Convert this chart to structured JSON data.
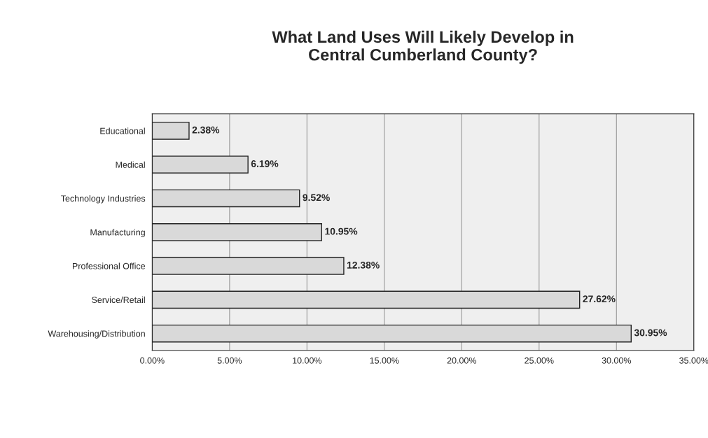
{
  "chart_data": {
    "type": "bar",
    "orientation": "horizontal",
    "title": "What Land Uses Will Likely Develop in\nCentral Cumberland County?",
    "categories": [
      "Educational",
      "Medical",
      "Technology Industries",
      "Manufacturing",
      "Professional Office",
      "Service/Retail",
      "Warehousing/Distribution"
    ],
    "values": [
      2.38,
      6.19,
      9.52,
      10.95,
      12.38,
      27.62,
      30.95
    ],
    "value_labels": [
      "2.38%",
      "6.19%",
      "9.52%",
      "10.95%",
      "12.38%",
      "27.62%",
      "30.95%"
    ],
    "color": "#d9d9d9",
    "xlim": [
      0,
      35
    ],
    "xticks": [
      {
        "value": 0,
        "label": "0.00%"
      },
      {
        "value": 5,
        "label": "5.00%"
      },
      {
        "value": 10,
        "label": "10.00%"
      },
      {
        "value": 15,
        "label": "15.00%"
      },
      {
        "value": 20,
        "label": "20.00%"
      },
      {
        "value": 25,
        "label": "25.00%"
      },
      {
        "value": 30,
        "label": "30.00%"
      },
      {
        "value": 35,
        "label": "35.00%"
      }
    ],
    "grid": "x"
  }
}
